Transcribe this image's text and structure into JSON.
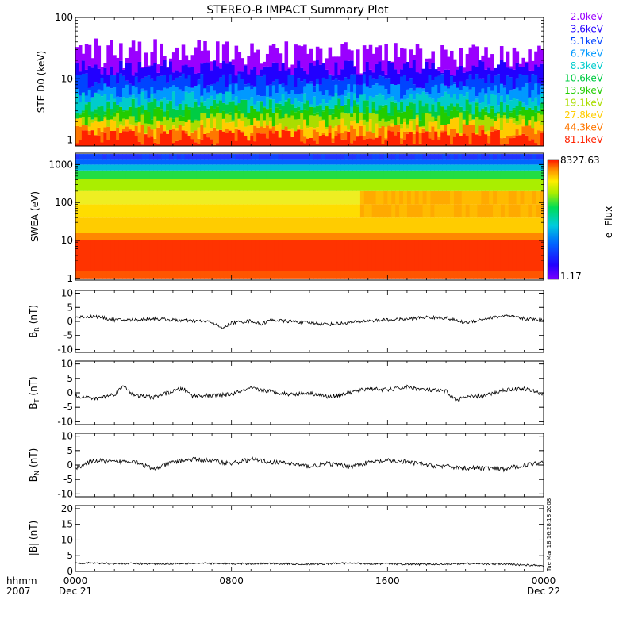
{
  "title": "STEREO-B IMPACT Summary Plot",
  "stamp": "Tue Mar 18 16:28:18 2008",
  "x_axis": {
    "corner_top": "hhmm",
    "corner_bottom": "2007",
    "ticks": [
      {
        "hour": 0,
        "top": "0000",
        "bottom": "Dec 21"
      },
      {
        "hour": 8,
        "top": "0800",
        "bottom": ""
      },
      {
        "hour": 16,
        "top": "1600",
        "bottom": ""
      },
      {
        "hour": 24,
        "top": "0000",
        "bottom": "Dec 22"
      }
    ],
    "range_hours": [
      0,
      24
    ]
  },
  "chart_data": [
    {
      "id": "ste",
      "type": "line",
      "ylabel": "STE D0 (keV)",
      "yscale": "log",
      "ylim": [
        0.8,
        100
      ],
      "yticks": [
        1,
        10,
        100
      ],
      "ytick_labels": [
        "1",
        "10",
        "100"
      ],
      "series": [
        {
          "name": "2.0keV",
          "color": "#9a00ff",
          "level": 32
        },
        {
          "name": "3.6keV",
          "color": "#2200ff",
          "level": 15
        },
        {
          "name": "5.1keV",
          "color": "#0044ff",
          "level": 9
        },
        {
          "name": "6.7keV",
          "color": "#0099ff",
          "level": 6.2
        },
        {
          "name": "8.3keV",
          "color": "#00cccc",
          "level": 4.6
        },
        {
          "name": "10.6keV",
          "color": "#00cc44",
          "level": 3.5
        },
        {
          "name": "13.9keV",
          "color": "#22cc00",
          "level": 2.7
        },
        {
          "name": "19.1keV",
          "color": "#aadd00",
          "level": 2.1
        },
        {
          "name": "27.8keV",
          "color": "#ffcc00",
          "level": 1.7
        },
        {
          "name": "44.3keV",
          "color": "#ff7700",
          "level": 1.35
        },
        {
          "name": "81.1keV",
          "color": "#ff2200",
          "level": 1.1
        }
      ]
    },
    {
      "id": "swea",
      "type": "heatmap",
      "ylabel": "SWEA (eV)",
      "yscale": "log",
      "ylim": [
        0.9,
        2000
      ],
      "yticks": [
        1,
        10,
        100,
        1000
      ],
      "ytick_labels": [
        "1",
        "10",
        "100",
        "1000"
      ],
      "colorbar": {
        "label": "e- Flux",
        "max_label": "8327.63",
        "min_label": "1.17",
        "min": 1.17,
        "max": 8327.63
      }
    },
    {
      "id": "br",
      "type": "line",
      "ylabel_main": "B",
      "ylabel_sub": "R",
      "ylabel_unit": "(nT)",
      "ylim": [
        -11,
        11
      ],
      "yticks": [
        -10,
        -5,
        0,
        5,
        10
      ],
      "ytick_labels": [
        "-10",
        "-5",
        "0",
        "5",
        "10"
      ],
      "knots": [
        [
          0,
          1.5
        ],
        [
          1,
          1.8
        ],
        [
          2,
          0.5
        ],
        [
          3,
          0.5
        ],
        [
          4,
          1.0
        ],
        [
          5,
          0.5
        ],
        [
          6,
          0.2
        ],
        [
          7,
          -0.2
        ],
        [
          7.5,
          -2.5
        ],
        [
          8,
          -0.5
        ],
        [
          9,
          0.2
        ],
        [
          9.5,
          -1.0
        ],
        [
          10,
          0.5
        ],
        [
          11,
          0
        ],
        [
          12,
          -0.5
        ],
        [
          13,
          -1
        ],
        [
          14,
          -0.5
        ],
        [
          15,
          0.2
        ],
        [
          16,
          0.5
        ],
        [
          17,
          0.8
        ],
        [
          18,
          1.5
        ],
        [
          19,
          1.2
        ],
        [
          20,
          -0.5
        ],
        [
          21,
          1.0
        ],
        [
          22,
          2.0
        ],
        [
          23,
          1.0
        ],
        [
          24,
          0.5
        ]
      ]
    },
    {
      "id": "bt",
      "type": "line",
      "ylabel_main": "B",
      "ylabel_sub": "T",
      "ylabel_unit": "(nT)",
      "ylim": [
        -11,
        11
      ],
      "yticks": [
        -10,
        -5,
        0,
        5,
        10
      ],
      "ytick_labels": [
        "-10",
        "-5",
        "0",
        "5",
        "10"
      ],
      "knots": [
        [
          0,
          -1.0
        ],
        [
          1,
          -2.0
        ],
        [
          2,
          -0.5
        ],
        [
          2.5,
          2.5
        ],
        [
          3,
          -1.0
        ],
        [
          4,
          -1.5
        ],
        [
          5,
          0.5
        ],
        [
          5.5,
          1.5
        ],
        [
          6,
          -1.0
        ],
        [
          7,
          -1.0
        ],
        [
          8,
          -0.5
        ],
        [
          9,
          1.5
        ],
        [
          10,
          0.5
        ],
        [
          11,
          -0.5
        ],
        [
          12,
          0
        ],
        [
          13,
          -1.5
        ],
        [
          14,
          0
        ],
        [
          15,
          1.5
        ],
        [
          16,
          1.0
        ],
        [
          17,
          2.0
        ],
        [
          18,
          1.0
        ],
        [
          19,
          0.5
        ],
        [
          19.5,
          -2.5
        ],
        [
          20,
          -1.5
        ],
        [
          21,
          -1.0
        ],
        [
          22,
          1.0
        ],
        [
          23,
          1.5
        ],
        [
          24,
          -0.5
        ]
      ]
    },
    {
      "id": "bn",
      "type": "line",
      "ylabel_main": "B",
      "ylabel_sub": "N",
      "ylabel_unit": "(nT)",
      "ylim": [
        -11,
        11
      ],
      "yticks": [
        -10,
        -5,
        0,
        5,
        10
      ],
      "ytick_labels": [
        "-10",
        "-5",
        "0",
        "5",
        "10"
      ],
      "knots": [
        [
          0,
          -1.0
        ],
        [
          1,
          1.5
        ],
        [
          2,
          1.0
        ],
        [
          3,
          1.5
        ],
        [
          4,
          -1.5
        ],
        [
          5,
          1.0
        ],
        [
          6,
          2.0
        ],
        [
          7,
          1.5
        ],
        [
          8,
          0.5
        ],
        [
          9,
          2.0
        ],
        [
          10,
          1.0
        ],
        [
          11,
          0.5
        ],
        [
          12,
          -0.5
        ],
        [
          13,
          0.5
        ],
        [
          14,
          -0.5
        ],
        [
          15,
          0.8
        ],
        [
          16,
          1.5
        ],
        [
          17,
          1.0
        ],
        [
          18,
          0
        ],
        [
          19,
          -0.5
        ],
        [
          20,
          -1.0
        ],
        [
          21,
          -1.0
        ],
        [
          22,
          -1.5
        ],
        [
          23,
          0
        ],
        [
          24,
          1.0
        ]
      ]
    },
    {
      "id": "bmag",
      "type": "line",
      "ylabel": "|B| (nT)",
      "ylim": [
        0,
        21
      ],
      "yticks": [
        0,
        5,
        10,
        15,
        20
      ],
      "ytick_labels": [
        "0",
        "5",
        "10",
        "15",
        "20"
      ],
      "knots": [
        [
          0,
          2.7
        ],
        [
          2,
          2.5
        ],
        [
          4,
          2.4
        ],
        [
          6,
          2.6
        ],
        [
          8,
          2.4
        ],
        [
          10,
          2.5
        ],
        [
          12,
          2.3
        ],
        [
          14,
          2.6
        ],
        [
          16,
          2.4
        ],
        [
          18,
          2.2
        ],
        [
          20,
          2.5
        ],
        [
          22,
          2.3
        ],
        [
          24,
          1.8
        ]
      ]
    }
  ]
}
